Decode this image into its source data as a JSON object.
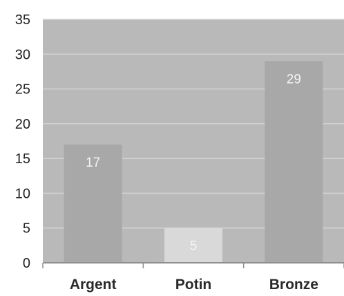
{
  "chart_data": {
    "type": "bar",
    "title": "",
    "xlabel": "",
    "ylabel": "",
    "categories": [
      "Argent",
      "Potin",
      "Bronze"
    ],
    "values": [
      17,
      5,
      29
    ],
    "data_labels": [
      "17",
      "5",
      "29"
    ],
    "ylim": [
      0,
      35
    ],
    "yticks": [
      "0",
      "5",
      "10",
      "15",
      "20",
      "25",
      "30",
      "35"
    ],
    "grid": true,
    "colors": {
      "plot_background": "#b9b9b9",
      "gridline": "#d4d4d4",
      "bars": [
        "#a8a8a8",
        "#d9d9d9",
        "#a8a8a8"
      ],
      "axis": "#8f8f8f"
    }
  }
}
